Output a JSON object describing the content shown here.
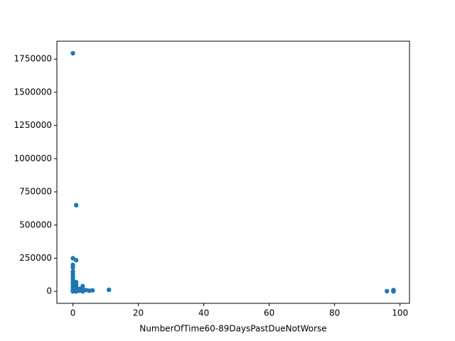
{
  "chart_data": {
    "type": "scatter",
    "x_label": "NumberOfTime60-89DaysPastDueNotWorse",
    "color": "#1f77b4",
    "x": [
      0,
      1,
      0,
      1,
      0,
      0,
      0,
      0,
      0,
      0,
      0,
      0,
      0,
      0,
      0,
      1,
      1,
      1,
      1,
      1,
      2,
      2,
      3,
      3,
      3,
      4,
      5,
      6,
      11,
      96,
      98,
      98,
      98
    ],
    "values": [
      1794060,
      649587,
      250000,
      235000,
      200000,
      180000,
      150000,
      130000,
      110000,
      90000,
      70000,
      50000,
      30000,
      10000,
      0,
      70000,
      50000,
      30000,
      10000,
      0,
      20000,
      5000,
      40000,
      15000,
      0,
      10000,
      5000,
      8000,
      12000,
      2000,
      10000,
      5000,
      0
    ],
    "xlim": [
      -4.9,
      102.9
    ],
    "xticks": [
      0,
      20,
      40,
      60,
      80,
      100
    ],
    "ylim": [
      -90000,
      1885000
    ],
    "yticks": [
      0,
      250000,
      500000,
      750000,
      1000000,
      1250000,
      1500000,
      1750000
    ]
  }
}
